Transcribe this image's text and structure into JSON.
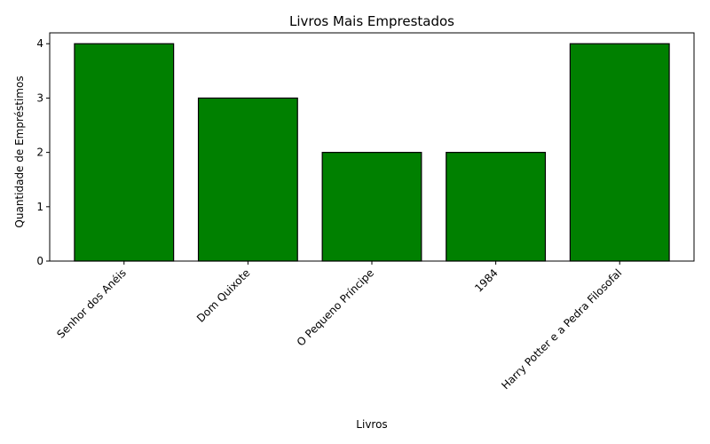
{
  "chart_data": {
    "type": "bar",
    "title": "Livros Mais Emprestados",
    "xlabel": "Livros",
    "ylabel": "Quantidade de Empréstimos",
    "categories": [
      "Senhor dos Anéis",
      "Dom Quixote",
      "O Pequeno Príncipe",
      "1984",
      "Harry Potter e a Pedra Filosofal"
    ],
    "values": [
      4,
      3,
      2,
      2,
      4
    ],
    "ylim": [
      0,
      4.2
    ],
    "yticks": [
      "0",
      "1",
      "2",
      "3",
      "4"
    ],
    "bar_color": "#008000",
    "edge_color": "#000000",
    "grid": false,
    "legend": "none"
  }
}
